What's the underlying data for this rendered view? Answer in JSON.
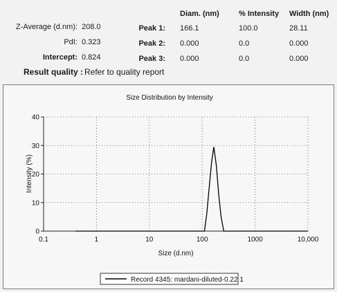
{
  "summary": {
    "z_average_label": "Z-Average (d.nm):",
    "z_average_value": "208.0",
    "pdi_label": "PdI:",
    "pdi_value": "0.323",
    "intercept_label": "Intercept:",
    "intercept_value": "0.824"
  },
  "peaks": {
    "headers": [
      "Diam. (nm)",
      "% Intensity",
      "Width (nm)"
    ],
    "rows": [
      {
        "label": "Peak 1:",
        "diam": "166.1",
        "intensity": "100.0",
        "width": "28.11"
      },
      {
        "label": "Peak 2:",
        "diam": "0.000",
        "intensity": "0.0",
        "width": "0.000"
      },
      {
        "label": "Peak 3:",
        "diam": "0.000",
        "intensity": "0.0",
        "width": "0.000"
      }
    ]
  },
  "quality": {
    "label": "Result quality :",
    "value": "Refer to quality report"
  },
  "chart_data": {
    "type": "line",
    "title": "Size Distribution by Intensity",
    "xlabel": "Size (d.nm)",
    "ylabel": "Intensity (%)",
    "xscale": "log",
    "xlim": [
      0.1,
      10000
    ],
    "ylim": [
      0,
      40
    ],
    "xticks": [
      0.1,
      1,
      10,
      100,
      1000,
      10000
    ],
    "xtick_labels": [
      "0.1",
      "1",
      "10",
      "100",
      "1000",
      "10,000"
    ],
    "yticks": [
      0,
      10,
      20,
      30,
      40
    ],
    "ytick_labels": [
      "0",
      "10",
      "20",
      "30",
      "40"
    ],
    "grid": "dotted",
    "legend": "bottom",
    "series": [
      {
        "name": "Record 4345: mardani-diluted-0.22 1",
        "color": "#000000",
        "x": [
          0.4,
          100,
          110,
          122,
          135,
          150,
          166,
          185,
          205,
          228,
          255,
          10000
        ],
        "y": [
          0,
          0,
          0,
          6,
          15,
          24,
          29.5,
          23,
          13,
          5,
          0,
          0
        ]
      }
    ]
  }
}
